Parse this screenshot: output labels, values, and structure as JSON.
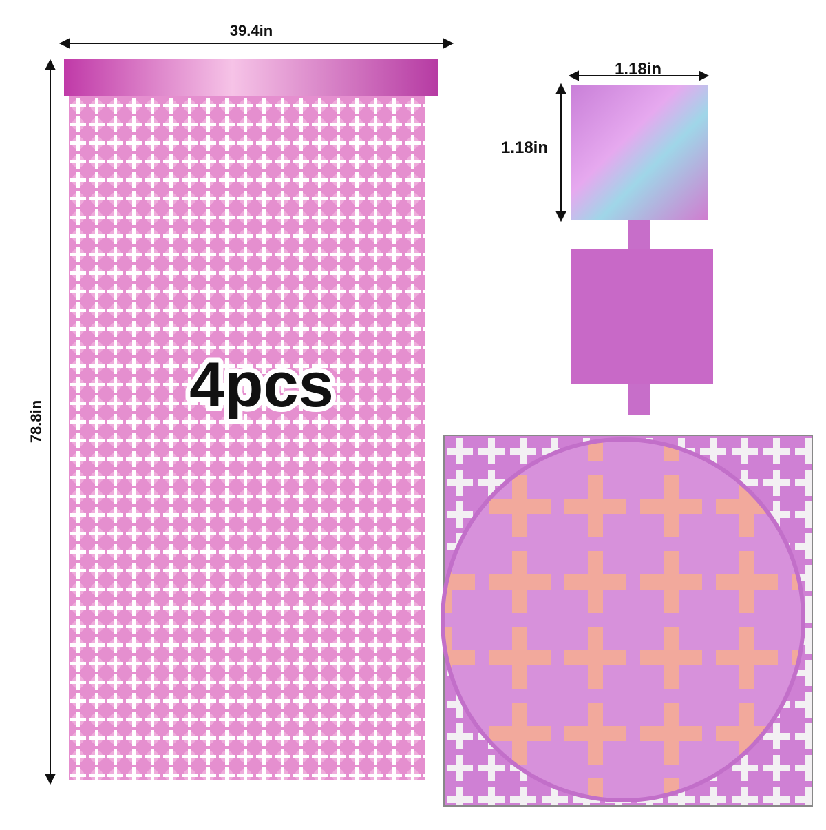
{
  "curtain": {
    "width": "39.4in",
    "height": "78.8in",
    "quantity": "4pcs"
  },
  "square": {
    "width": "1.18in",
    "height": "1.18in"
  }
}
